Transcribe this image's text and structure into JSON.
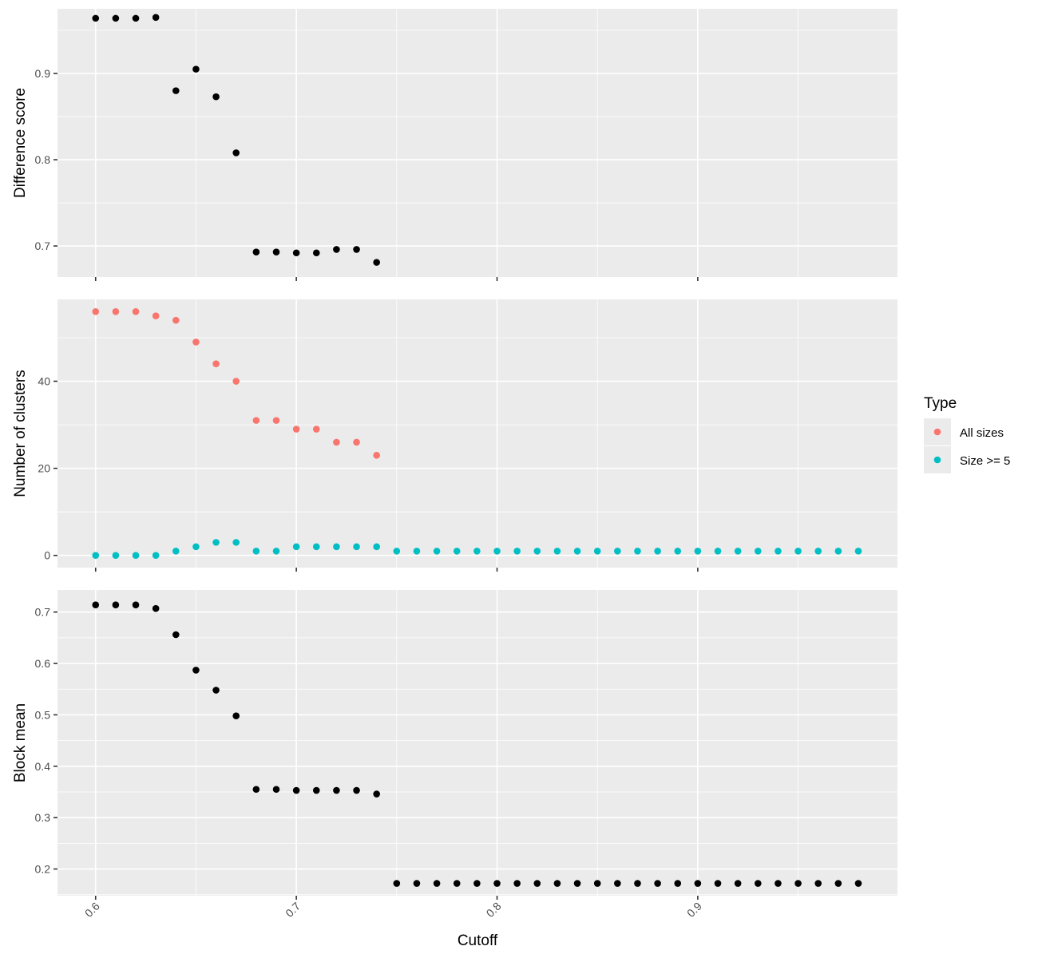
{
  "chart_data": {
    "type": "scatter",
    "x_axis": {
      "label": "Cutoff",
      "range": [
        0.581,
        0.9995
      ],
      "ticks": [
        0.6,
        0.7,
        0.8,
        0.9
      ],
      "tick_labels": [
        "0.6",
        "0.7",
        "0.8",
        "0.9"
      ]
    },
    "colors": {
      "panel_background": "#ebebeb",
      "grid": "#ffffff",
      "point_default": "#000000",
      "all_sizes": "#F8766D",
      "size_ge_5": "#00BFC4"
    },
    "legend": {
      "title": "Type",
      "position": "right",
      "entries": [
        {
          "label": "All sizes",
          "color": "#F8766D"
        },
        {
          "label": "Size >= 5",
          "color": "#00BFC4"
        }
      ]
    },
    "panels": [
      {
        "ylabel": "Difference score",
        "ylim": [
          0.664,
          0.975
        ],
        "yticks": [
          0.7,
          0.8,
          0.9
        ],
        "ytick_labels": [
          "0.7",
          "0.8",
          "0.9"
        ],
        "series": [
          {
            "x": [
              0.6,
              0.61,
              0.62,
              0.63,
              0.64,
              0.65,
              0.66,
              0.67,
              0.68,
              0.69,
              0.7,
              0.71,
              0.72,
              0.73,
              0.74
            ],
            "y": [
              0.964,
              0.964,
              0.964,
              0.965,
              0.88,
              0.905,
              0.873,
              0.808,
              0.693,
              0.693,
              0.692,
              0.692,
              0.696,
              0.696,
              0.681
            ]
          }
        ]
      },
      {
        "ylabel": "Number of clusters",
        "ylim": [
          -2.8,
          58.8
        ],
        "yticks": [
          0,
          20,
          40
        ],
        "ytick_labels": [
          "0",
          "20",
          "40"
        ],
        "series": [
          {
            "name": "All sizes",
            "color": "#F8766D",
            "x": [
              0.6,
              0.61,
              0.62,
              0.63,
              0.64,
              0.65,
              0.66,
              0.67,
              0.68,
              0.69,
              0.7,
              0.71,
              0.72,
              0.73,
              0.74
            ],
            "y": [
              56,
              56,
              56,
              55,
              54,
              49,
              44,
              40,
              31,
              31,
              29,
              29,
              26,
              26,
              23
            ]
          },
          {
            "name": "Size >= 5",
            "color": "#00BFC4",
            "x": [
              0.6,
              0.61,
              0.62,
              0.63,
              0.64,
              0.65,
              0.66,
              0.67,
              0.68,
              0.69,
              0.7,
              0.71,
              0.72,
              0.73,
              0.74,
              0.75,
              0.76,
              0.77,
              0.78,
              0.79,
              0.8,
              0.81,
              0.82,
              0.83,
              0.84,
              0.85,
              0.86,
              0.87,
              0.88,
              0.89,
              0.9,
              0.91,
              0.92,
              0.93,
              0.94,
              0.95,
              0.96,
              0.97,
              0.98
            ],
            "y": [
              0,
              0,
              0,
              0,
              1,
              2,
              3,
              3,
              1,
              1,
              2,
              2,
              2,
              2,
              2,
              1,
              1,
              1,
              1,
              1,
              1,
              1,
              1,
              1,
              1,
              1,
              1,
              1,
              1,
              1,
              1,
              1,
              1,
              1,
              1,
              1,
              1,
              1,
              1
            ]
          }
        ]
      },
      {
        "ylabel": "Block mean",
        "ylim": [
          0.148,
          0.743
        ],
        "yticks": [
          0.2,
          0.3,
          0.4,
          0.5,
          0.6,
          0.7
        ],
        "ytick_labels": [
          "0.2",
          "0.3",
          "0.4",
          "0.5",
          "0.6",
          "0.7"
        ],
        "series": [
          {
            "x": [
              0.6,
              0.61,
              0.62,
              0.63,
              0.64,
              0.65,
              0.66,
              0.67,
              0.68,
              0.69,
              0.7,
              0.71,
              0.72,
              0.73,
              0.74,
              0.75,
              0.76,
              0.77,
              0.78,
              0.79,
              0.8,
              0.81,
              0.82,
              0.83,
              0.84,
              0.85,
              0.86,
              0.87,
              0.88,
              0.89,
              0.9,
              0.91,
              0.92,
              0.93,
              0.94,
              0.95,
              0.96,
              0.97,
              0.98
            ],
            "y": [
              0.714,
              0.714,
              0.714,
              0.707,
              0.656,
              0.587,
              0.548,
              0.498,
              0.355,
              0.355,
              0.353,
              0.353,
              0.353,
              0.353,
              0.346,
              0.172,
              0.172,
              0.172,
              0.172,
              0.172,
              0.172,
              0.172,
              0.172,
              0.172,
              0.172,
              0.172,
              0.172,
              0.172,
              0.172,
              0.172,
              0.172,
              0.172,
              0.172,
              0.172,
              0.172,
              0.172,
              0.172,
              0.172,
              0.172
            ]
          }
        ]
      }
    ]
  }
}
